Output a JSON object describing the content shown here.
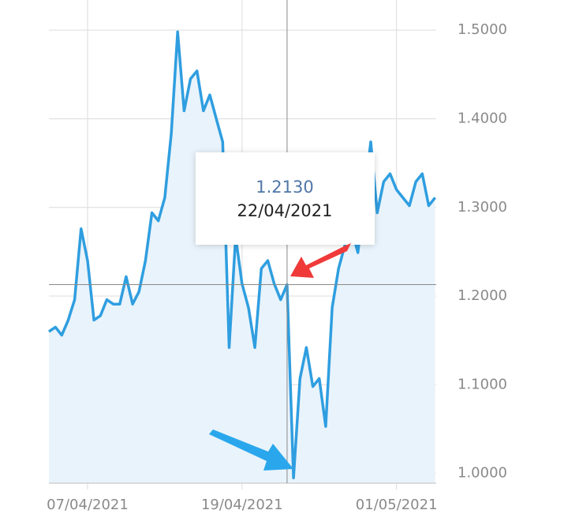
{
  "chart_data": {
    "type": "line",
    "color": "#2f9ee0",
    "area_color": "#e9f3fb",
    "grid": true,
    "x": [
      "2021-04-04T00:00",
      "2021-04-04T12:00",
      "2021-04-05T00:00",
      "2021-04-05T12:00",
      "2021-04-06T00:00",
      "2021-04-06T12:00",
      "2021-04-07T00:00",
      "2021-04-07T12:00",
      "2021-04-08T00:00",
      "2021-04-08T12:00",
      "2021-04-09T00:00",
      "2021-04-09T12:00",
      "2021-04-10T00:00",
      "2021-04-10T12:00",
      "2021-04-11T00:00",
      "2021-04-11T12:00",
      "2021-04-12T00:00",
      "2021-04-12T12:00",
      "2021-04-13T00:00",
      "2021-04-13T12:00",
      "2021-04-14T00:00",
      "2021-04-14T12:00",
      "2021-04-15T00:00",
      "2021-04-15T12:00",
      "2021-04-16T00:00",
      "2021-04-16T12:00",
      "2021-04-17T00:00",
      "2021-04-17T12:00",
      "2021-04-18T00:00",
      "2021-04-18T12:00",
      "2021-04-19T00:00",
      "2021-04-19T12:00",
      "2021-04-20T00:00",
      "2021-04-20T12:00",
      "2021-04-21T00:00",
      "2021-04-21T12:00",
      "2021-04-22T00:00",
      "2021-04-22T12:00",
      "2021-04-23T00:00",
      "2021-04-23T12:00",
      "2021-04-24T00:00",
      "2021-04-24T12:00",
      "2021-04-25T00:00",
      "2021-04-25T12:00",
      "2021-04-26T00:00",
      "2021-04-26T12:00",
      "2021-04-27T00:00",
      "2021-04-27T12:00",
      "2021-04-28T00:00",
      "2021-04-28T12:00",
      "2021-04-29T00:00",
      "2021-04-29T12:00",
      "2021-04-30T00:00",
      "2021-04-30T12:00",
      "2021-05-01T00:00",
      "2021-05-01T12:00",
      "2021-05-02T00:00",
      "2021-05-02T12:00",
      "2021-05-03T00:00",
      "2021-05-03T12:00",
      "2021-05-04T00:00"
    ],
    "values": [
      1.16,
      1.165,
      1.156,
      1.173,
      1.196,
      1.276,
      1.24,
      1.173,
      1.178,
      1.196,
      1.191,
      1.191,
      1.222,
      1.191,
      1.205,
      1.24,
      1.294,
      1.285,
      1.311,
      1.383,
      1.498,
      1.409,
      1.445,
      1.454,
      1.409,
      1.427,
      1.4,
      1.374,
      1.142,
      1.267,
      1.214,
      1.187,
      1.142,
      1.231,
      1.24,
      1.214,
      1.196,
      1.213,
      0.995,
      1.107,
      1.142,
      1.098,
      1.107,
      1.053,
      1.187,
      1.231,
      1.258,
      1.276,
      1.249,
      1.311,
      1.374,
      1.294,
      1.329,
      1.338,
      1.32,
      1.311,
      1.302,
      1.329,
      1.338,
      1.302,
      1.311
    ],
    "xlim": [
      "2021-04-04T00:00",
      "2021-05-04T02:00"
    ],
    "xticks": [
      {
        "value": "2021-04-07T00:00",
        "label": "07/04/2021"
      },
      {
        "value": "2021-04-19T00:00",
        "label": "19/04/2021"
      },
      {
        "value": "2021-05-01T00:00",
        "label": "01/05/2021"
      }
    ],
    "ylim": [
      0.989,
      1.534
    ],
    "yticks": [
      {
        "value": 1.0,
        "label": "1.0000"
      },
      {
        "value": 1.1,
        "label": "1.1000"
      },
      {
        "value": 1.2,
        "label": "1.2000"
      },
      {
        "value": 1.3,
        "label": "1.3000"
      },
      {
        "value": 1.4,
        "label": "1.4000"
      },
      {
        "value": 1.5,
        "label": "1.5000"
      }
    ],
    "tooltip": {
      "x": {
        "value": "2021-04-22T12:00",
        "label": "22/04/2021"
      },
      "y": {
        "value": 1.213,
        "label": "1.2130"
      }
    }
  }
}
